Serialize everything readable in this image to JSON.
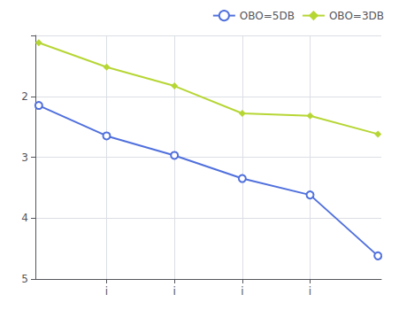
{
  "chart_data": {
    "type": "line",
    "x": [
      0,
      1,
      2,
      3,
      4,
      5
    ],
    "series": [
      {
        "name": "OBO=5DB",
        "values": [
          2.15,
          2.65,
          2.97,
          3.35,
          3.62,
          4.62
        ],
        "marker": "circle_open"
      },
      {
        "name": "OBO=3DB",
        "values": [
          1.12,
          1.52,
          1.83,
          2.28,
          2.32,
          2.62
        ],
        "marker": "diamond"
      }
    ],
    "xlim": [
      -0.05,
      5.05
    ],
    "xticks": [
      {
        "value": 1,
        "label": "i"
      },
      {
        "value": 2,
        "label": "i"
      },
      {
        "value": 3,
        "label": "i"
      },
      {
        "value": 4,
        "label": "i"
      }
    ],
    "ylim": [
      5,
      1
    ],
    "yticks": [
      {
        "value": 1,
        "label": ""
      },
      2,
      3,
      4,
      5
    ],
    "grid": true,
    "legend": "upper right"
  }
}
